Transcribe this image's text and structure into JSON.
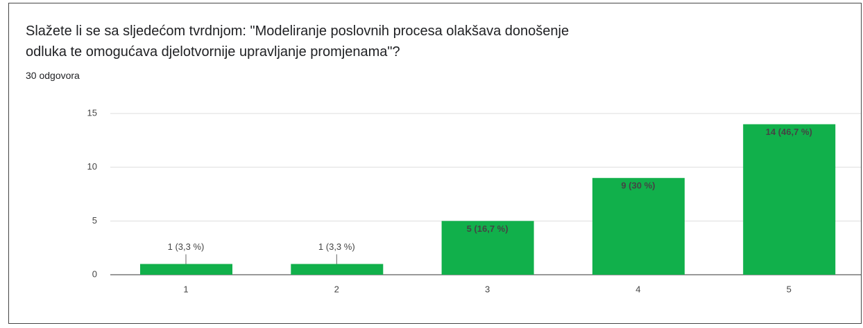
{
  "chart_data": {
    "type": "bar",
    "title": "Slažete li se sa sljedećom tvrdnjom: \"Modeliranje poslovnih procesa olakšava donošenje\nodluka te omogućava djelotvornije upravljanje promjenama\"?",
    "subtitle": "30 odgovora",
    "categories": [
      "1",
      "2",
      "3",
      "4",
      "5"
    ],
    "values": [
      1,
      1,
      5,
      9,
      14
    ],
    "value_labels": [
      "1 (3,3 %)",
      "1 (3,3 %)",
      "5 (16,7 %)",
      "9 (30 %)",
      "14 (46,7 %)"
    ],
    "color": "#11b04b",
    "ylim": [
      0,
      15
    ],
    "yticks": [
      0,
      5,
      10,
      15
    ],
    "grid": true
  }
}
